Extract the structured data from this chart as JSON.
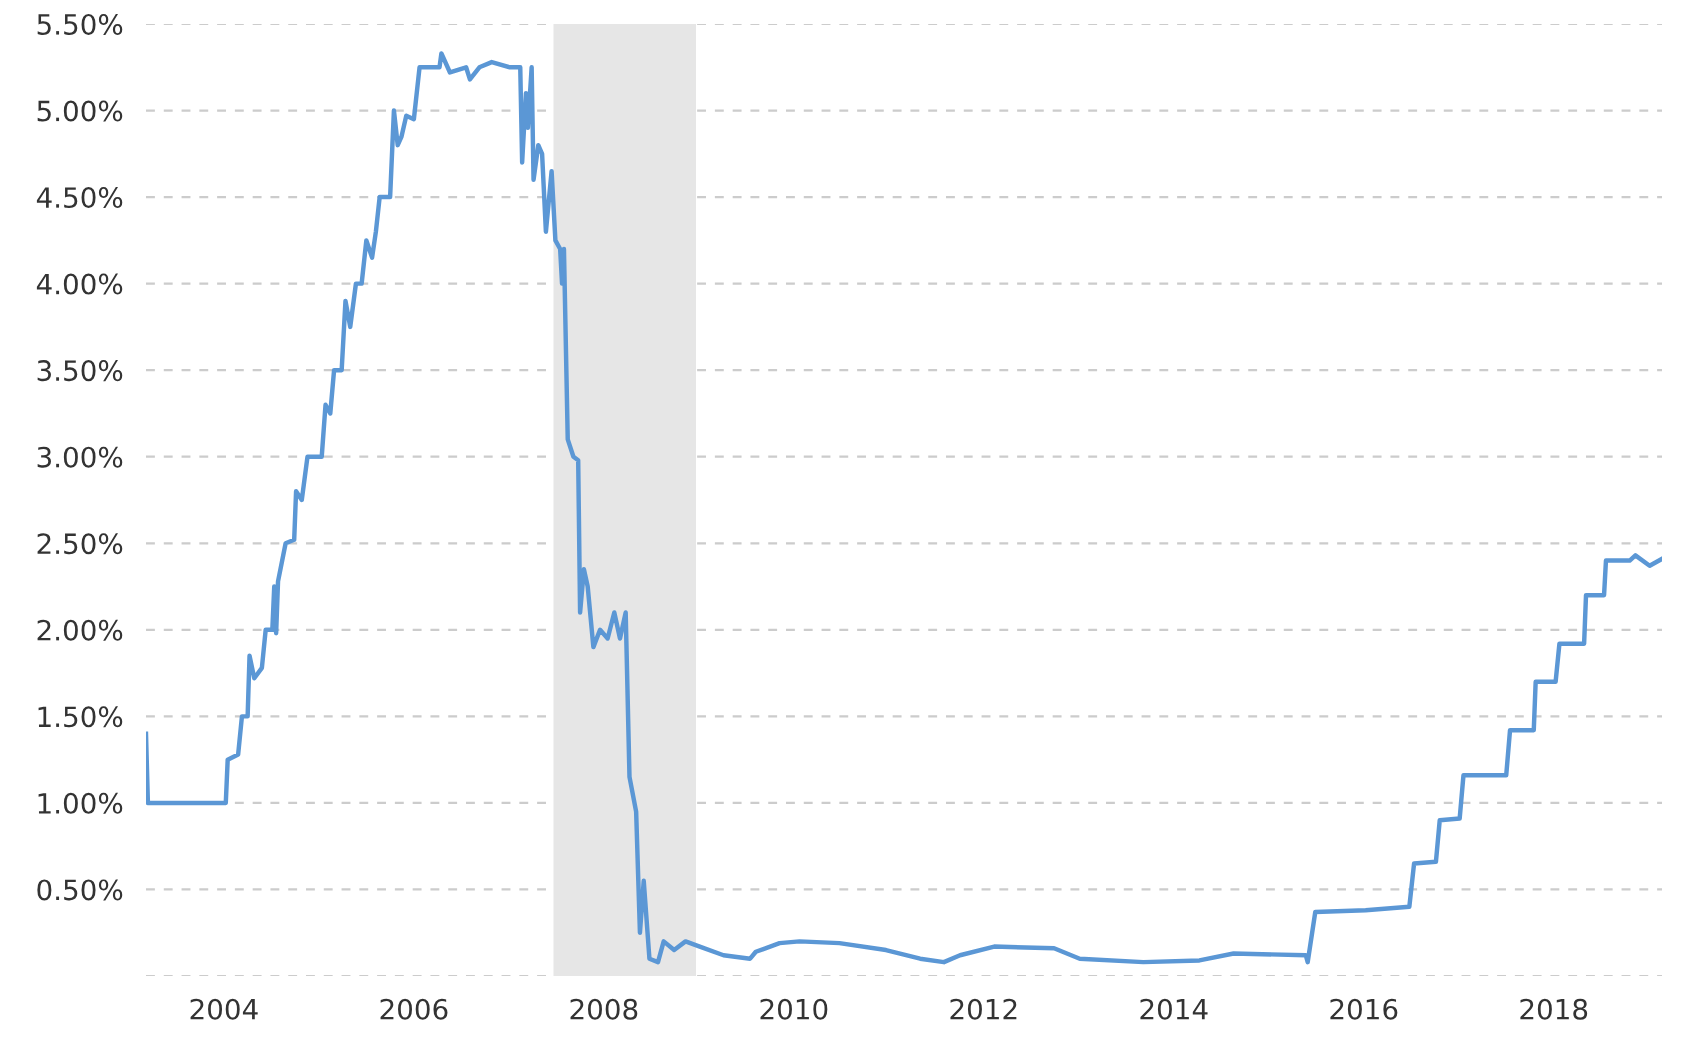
{
  "chart_data": {
    "type": "line",
    "color": "#5b97d5",
    "grid": "y",
    "line_style": "solid",
    "marker": "none",
    "xlim": [
      2003.68,
      2019.64
    ],
    "ylim": [
      0,
      5.5
    ],
    "xticks": [
      {
        "value": 2004.5,
        "label": "2004"
      },
      {
        "value": 2006.5,
        "label": "2006"
      },
      {
        "value": 2008.5,
        "label": "2008"
      },
      {
        "value": 2010.5,
        "label": "2010"
      },
      {
        "value": 2012.5,
        "label": "2012"
      },
      {
        "value": 2014.5,
        "label": "2014"
      },
      {
        "value": 2016.5,
        "label": "2016"
      },
      {
        "value": 2018.5,
        "label": "2018"
      }
    ],
    "yticks": [
      {
        "value": 0,
        "label": null
      },
      {
        "value": 0.5,
        "label": "0.50%"
      },
      {
        "value": 1,
        "label": "1.00%"
      },
      {
        "value": 1.5,
        "label": "1.50%"
      },
      {
        "value": 2,
        "label": "2.00%"
      },
      {
        "value": 2.5,
        "label": "2.50%"
      },
      {
        "value": 3,
        "label": "3.00%"
      },
      {
        "value": 3.5,
        "label": "3.50%"
      },
      {
        "value": 4,
        "label": "4.00%"
      },
      {
        "value": 4.5,
        "label": "4.50%"
      },
      {
        "value": 5,
        "label": "5.00%"
      },
      {
        "value": 5.5,
        "label": "5.50%"
      }
    ],
    "bands": [
      {
        "axis": "x",
        "from": 2007.97,
        "to": 2009.47,
        "label": null,
        "color": "#e6e6e6"
      }
    ],
    "x": [
      2003.68,
      2003.7,
      2004.04,
      2004.52,
      2004.54,
      2004.65,
      2004.69,
      2004.75,
      2004.77,
      2004.82,
      2004.9,
      2004.94,
      2005.01,
      2005.03,
      2005.05,
      2005.07,
      2005.15,
      2005.24,
      2005.26,
      2005.32,
      2005.38,
      2005.53,
      2005.57,
      2005.62,
      2005.66,
      2005.74,
      2005.78,
      2005.83,
      2005.89,
      2005.95,
      2006.0,
      2006.06,
      2006.1,
      2006.14,
      2006.25,
      2006.29,
      2006.33,
      2006.37,
      2006.42,
      2006.5,
      2006.56,
      2006.77,
      2006.79,
      2006.88,
      2007.05,
      2007.09,
      2007.19,
      2007.32,
      2007.51,
      2007.62,
      2007.64,
      2007.68,
      2007.7,
      2007.74,
      2007.76,
      2007.81,
      2007.85,
      2007.89,
      2007.95,
      2007.99,
      2008.04,
      2008.06,
      2008.08,
      2008.12,
      2008.18,
      2008.23,
      2008.25,
      2008.29,
      2008.33,
      2008.39,
      2008.46,
      2008.54,
      2008.61,
      2008.67,
      2008.73,
      2008.77,
      2008.84,
      2008.88,
      2008.92,
      2008.98,
      2009.07,
      2009.13,
      2009.24,
      2009.36,
      2009.51,
      2009.76,
      2010.04,
      2010.1,
      2010.35,
      2010.56,
      2010.98,
      2011.47,
      2011.83,
      2012.08,
      2012.25,
      2012.61,
      2013.24,
      2013.51,
      2014.18,
      2014.77,
      2015.13,
      2015.89,
      2015.91,
      2015.99,
      2016.52,
      2016.98,
      2017.03,
      2017.26,
      2017.3,
      2017.51,
      2017.55,
      2018.0,
      2018.04,
      2018.29,
      2018.31,
      2018.52,
      2018.56,
      2018.82,
      2018.84,
      2019.03,
      2019.05,
      2019.3,
      2019.36,
      2019.51,
      2019.64
    ],
    "values": [
      1.4,
      1.0,
      1.0,
      1.0,
      1.25,
      1.28,
      1.5,
      1.5,
      1.85,
      1.72,
      1.78,
      2.0,
      2.0,
      2.25,
      1.98,
      2.28,
      2.5,
      2.52,
      2.8,
      2.75,
      3.0,
      3.0,
      3.3,
      3.25,
      3.5,
      3.5,
      3.9,
      3.75,
      4.0,
      4.0,
      4.25,
      4.15,
      4.3,
      4.5,
      4.5,
      5.0,
      4.8,
      4.85,
      4.97,
      4.95,
      5.25,
      5.25,
      5.33,
      5.22,
      5.25,
      5.18,
      5.25,
      5.28,
      5.25,
      5.25,
      4.7,
      5.1,
      4.9,
      5.25,
      4.6,
      4.8,
      4.75,
      4.3,
      4.65,
      4.25,
      4.2,
      4.0,
      4.2,
      3.1,
      3.0,
      2.98,
      2.1,
      2.35,
      2.25,
      1.9,
      2.0,
      1.95,
      2.1,
      1.95,
      2.1,
      1.15,
      0.95,
      0.25,
      0.55,
      0.1,
      0.08,
      0.2,
      0.15,
      0.2,
      0.17,
      0.12,
      0.1,
      0.14,
      0.19,
      0.2,
      0.19,
      0.15,
      0.1,
      0.08,
      0.12,
      0.17,
      0.16,
      0.1,
      0.08,
      0.09,
      0.13,
      0.12,
      0.08,
      0.37,
      0.38,
      0.4,
      0.65,
      0.66,
      0.9,
      0.91,
      1.16,
      1.16,
      1.42,
      1.42,
      1.7,
      1.7,
      1.92,
      1.92,
      2.2,
      2.2,
      2.4,
      2.4,
      2.43,
      2.37,
      2.41
    ]
  }
}
